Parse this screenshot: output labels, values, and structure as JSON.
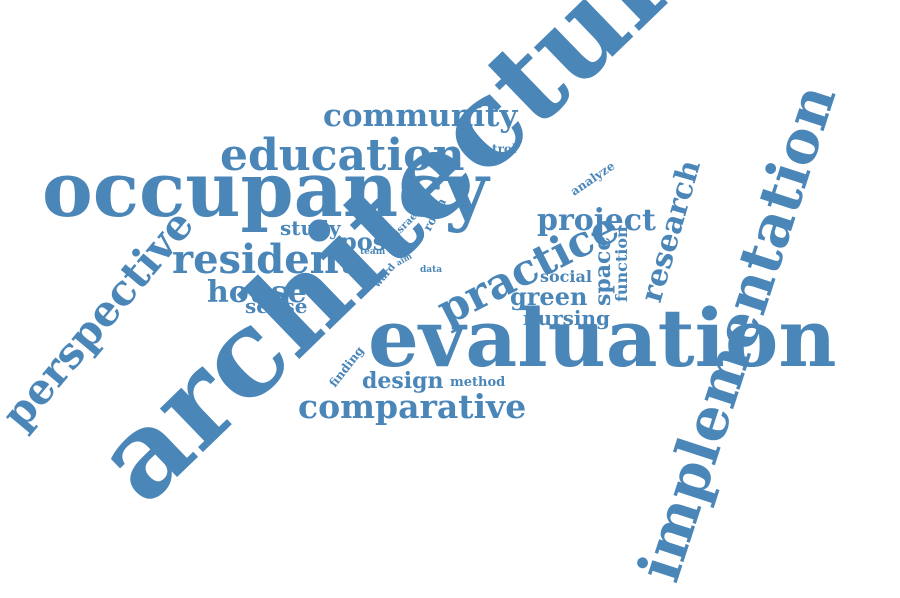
{
  "word_color": "#4a86b8",
  "background_color": "#ffffff",
  "words": [
    "architectural",
    "evaluation",
    "occupancy",
    "implementation",
    "perspective",
    "education",
    "community",
    "practice",
    "resident",
    "comparative",
    "project",
    "research",
    "house",
    "post",
    "study",
    "green",
    "nursing",
    "design",
    "space",
    "function",
    "social",
    "sense",
    "analyze",
    "control",
    "room",
    "method",
    "finding",
    "israel",
    "team",
    "aim",
    "ward",
    "data"
  ]
}
